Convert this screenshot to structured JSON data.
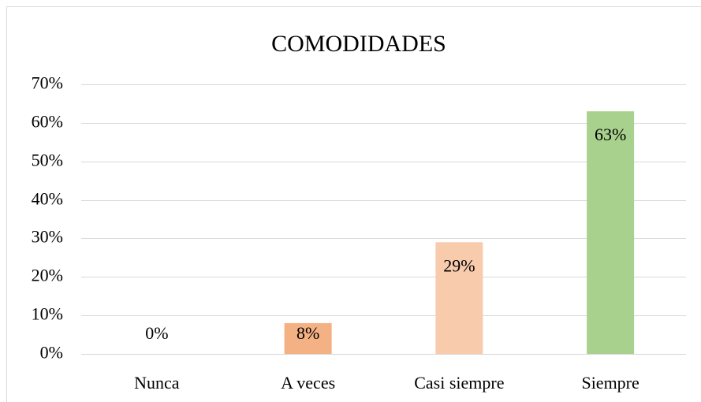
{
  "chart_data": {
    "type": "bar",
    "title": "COMODIDADES",
    "categories": [
      "Nunca",
      "A veces",
      "Casi siempre",
      "Siempre"
    ],
    "values": [
      0,
      8,
      29,
      63
    ],
    "value_labels": [
      "0%",
      "8%",
      "29%",
      "63%"
    ],
    "colors": [
      "#f4b183",
      "#f4b183",
      "#f8cbad",
      "#a9d18e"
    ],
    "ylim": [
      0,
      70
    ],
    "yticks": [
      {
        "value": 0,
        "label": "0%"
      },
      {
        "value": 10,
        "label": "10%"
      },
      {
        "value": 20,
        "label": "20%"
      },
      {
        "value": 30,
        "label": "30%"
      },
      {
        "value": 40,
        "label": "40%"
      },
      {
        "value": 50,
        "label": "50%"
      },
      {
        "value": 60,
        "label": "60%"
      },
      {
        "value": 70,
        "label": "70%"
      }
    ],
    "grid": true
  }
}
